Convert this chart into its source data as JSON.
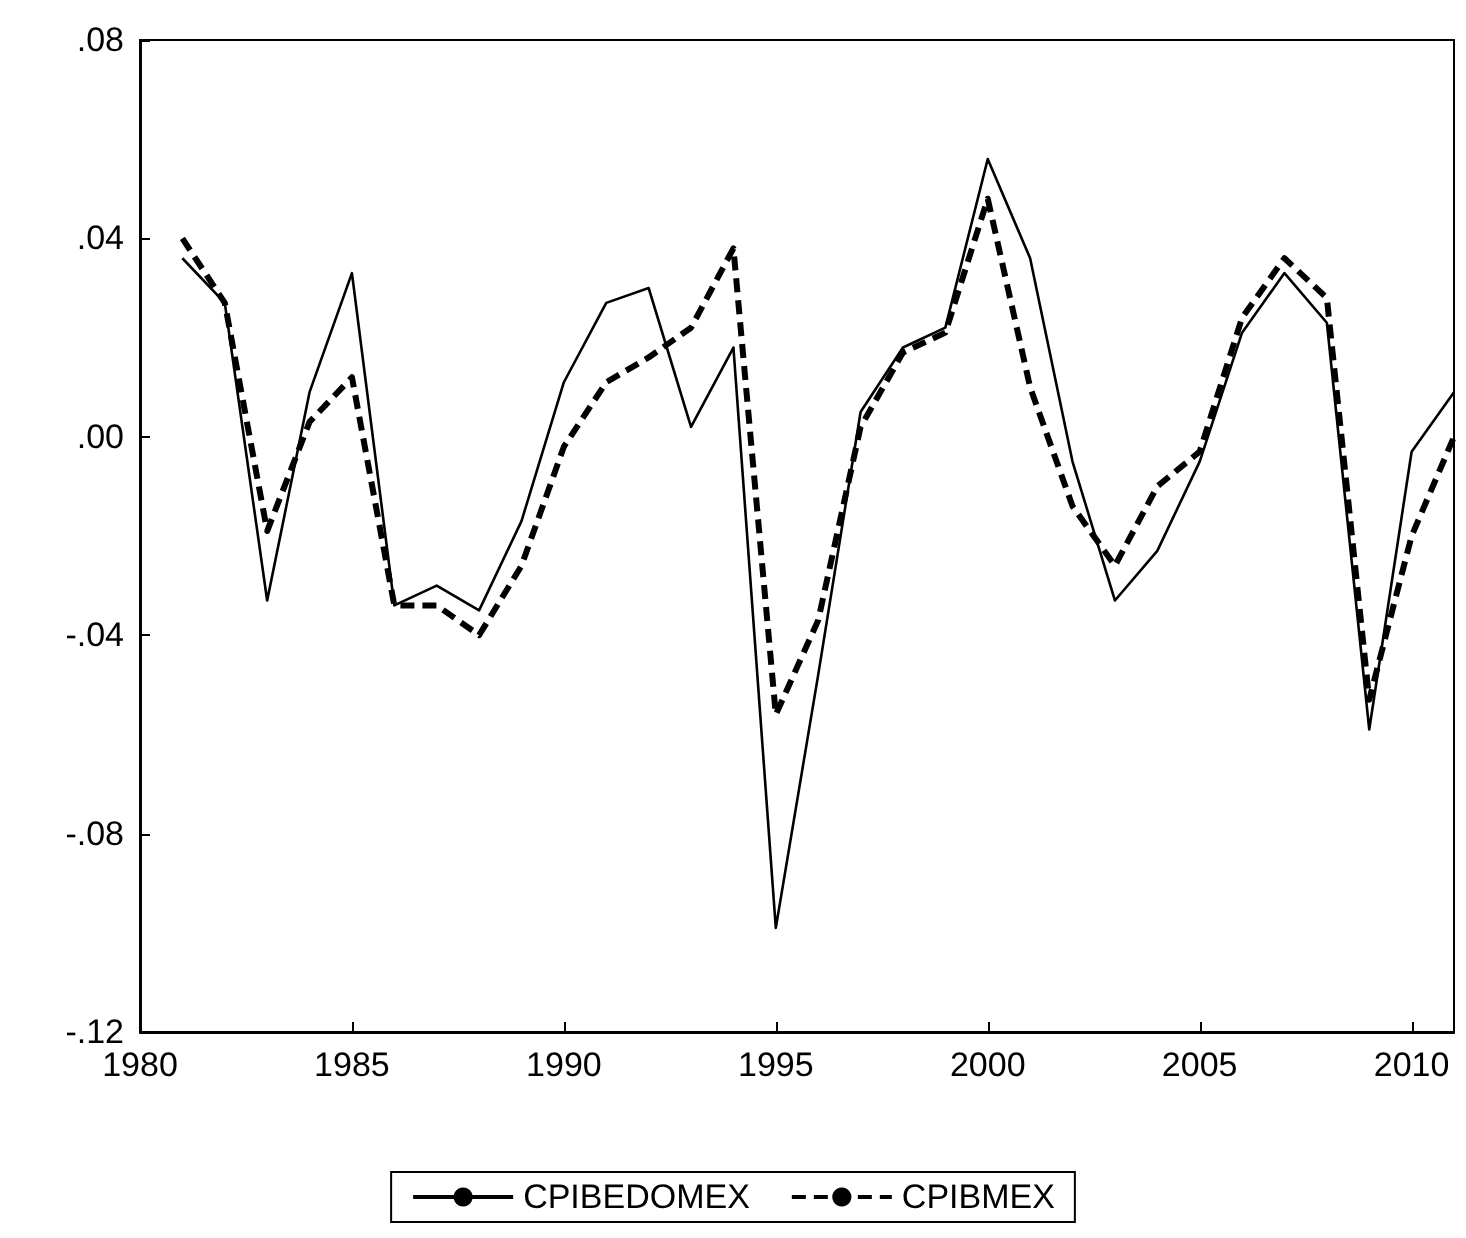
{
  "chart_data": {
    "type": "line",
    "x": [
      1981,
      1982,
      1983,
      1984,
      1985,
      1986,
      1987,
      1988,
      1989,
      1990,
      1991,
      1992,
      1993,
      1994,
      1995,
      1996,
      1997,
      1998,
      1999,
      2000,
      2001,
      2002,
      2003,
      2004,
      2005,
      2006,
      2007,
      2008,
      2009,
      2010,
      2011
    ],
    "series": [
      {
        "name": "CPIBEDOMEX",
        "color": "#000000",
        "line_style": "solid",
        "values": [
          0.036,
          0.027,
          -0.033,
          0.009,
          0.033,
          -0.034,
          -0.03,
          -0.035,
          -0.017,
          0.011,
          0.027,
          0.03,
          0.002,
          0.018,
          -0.099,
          -0.048,
          0.005,
          0.018,
          0.022,
          0.056,
          0.036,
          -0.005,
          -0.033,
          -0.023,
          -0.005,
          0.021,
          0.033,
          0.023,
          -0.059,
          -0.003,
          0.009
        ]
      },
      {
        "name": "CPIBMEX",
        "color": "#000000",
        "line_style": "dashed",
        "values": [
          0.04,
          0.027,
          -0.019,
          0.003,
          0.012,
          -0.034,
          -0.034,
          -0.04,
          -0.026,
          -0.002,
          0.011,
          0.016,
          0.022,
          0.038,
          -0.056,
          -0.037,
          0.002,
          0.017,
          0.021,
          0.048,
          0.01,
          -0.014,
          -0.026,
          -0.01,
          -0.003,
          0.024,
          0.036,
          0.028,
          -0.053,
          -0.02,
          0.0
        ]
      }
    ],
    "xlim": [
      1980,
      2011
    ],
    "xticks": [
      1980,
      1985,
      1990,
      1995,
      2000,
      2005,
      2010
    ],
    "ylim": [
      -0.12,
      0.08
    ],
    "yticks": [
      {
        "value": -0.12,
        "label": "-.12"
      },
      {
        "value": -0.08,
        "label": "-.08"
      },
      {
        "value": -0.04,
        "label": "-.04"
      },
      {
        "value": 0,
        "label": ".00"
      },
      {
        "value": 0.04,
        "label": ".04"
      },
      {
        "value": 0.08,
        "label": ".08"
      }
    ],
    "grid": false,
    "legend": "bottom",
    "marker": "none"
  }
}
